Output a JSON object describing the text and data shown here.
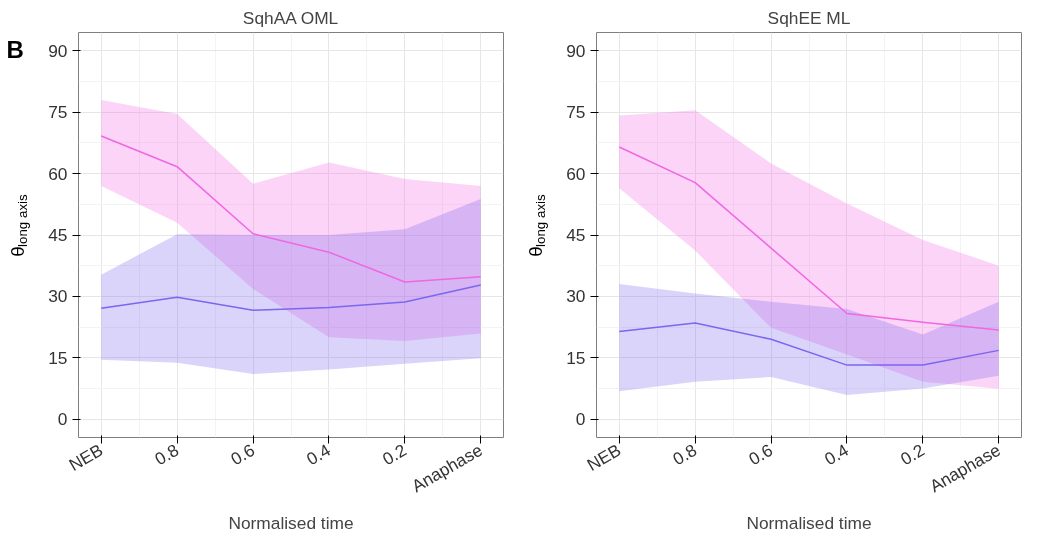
{
  "chart_data": [
    {
      "type": "line",
      "title": "SqhAA OML",
      "xlabel": "Normalised time",
      "ylabel": "θ$_{long axis}$",
      "annotations": [
        "B"
      ],
      "categories": [
        "NEB",
        "0.8",
        "0.6",
        "0.4",
        "0.2",
        "Anaphase"
      ],
      "ylim": [
        -4.5,
        94.5
      ],
      "yticks": [
        0,
        15,
        30,
        45,
        60,
        75,
        90
      ],
      "grid": true,
      "series": [
        {
          "color": "#f066e3",
          "values": [
            69.2,
            61.7,
            45.3,
            40.8,
            33.5,
            34.8
          ],
          "lower": [
            57,
            48,
            31.8,
            20,
            19.1,
            20.9
          ],
          "upper": [
            78,
            74.6,
            57.5,
            62.7,
            58.7,
            57
          ]
        },
        {
          "color": "#7b66f0",
          "values": [
            27.1,
            29.8,
            26.6,
            27.3,
            28.6,
            32.8
          ],
          "lower": [
            14.5,
            13.8,
            11,
            12.1,
            13.5,
            14.9
          ],
          "upper": [
            35.3,
            45.2,
            45,
            45,
            46.4,
            53.8
          ]
        }
      ]
    },
    {
      "type": "line",
      "title": "SqhEE ML",
      "xlabel": "Normalised time",
      "ylabel": "θ$_{long axis}$",
      "categories": [
        "NEB",
        "0.8",
        "0.6",
        "0.4",
        "0.2",
        "Anaphase"
      ],
      "ylim": [
        -4.5,
        94.5
      ],
      "yticks": [
        0,
        15,
        30,
        45,
        60,
        75,
        90
      ],
      "grid": true,
      "series": [
        {
          "color": "#f066e3",
          "values": [
            66.5,
            57.8,
            41.8,
            25.8,
            23.7,
            21.8
          ],
          "lower": [
            56.4,
            41.2,
            22.3,
            15.8,
            9.1,
            7.4
          ],
          "upper": [
            74.2,
            75.5,
            62.5,
            52.7,
            43.8,
            37.5
          ]
        },
        {
          "color": "#7b66f0",
          "values": [
            21.4,
            23.5,
            19.5,
            13.2,
            13.2,
            16.8
          ],
          "lower": [
            6.8,
            9.1,
            10.3,
            5.9,
            7.5,
            10.6
          ],
          "upper": [
            33,
            30.7,
            28.7,
            26.9,
            20.7,
            28.7
          ]
        }
      ]
    }
  ]
}
